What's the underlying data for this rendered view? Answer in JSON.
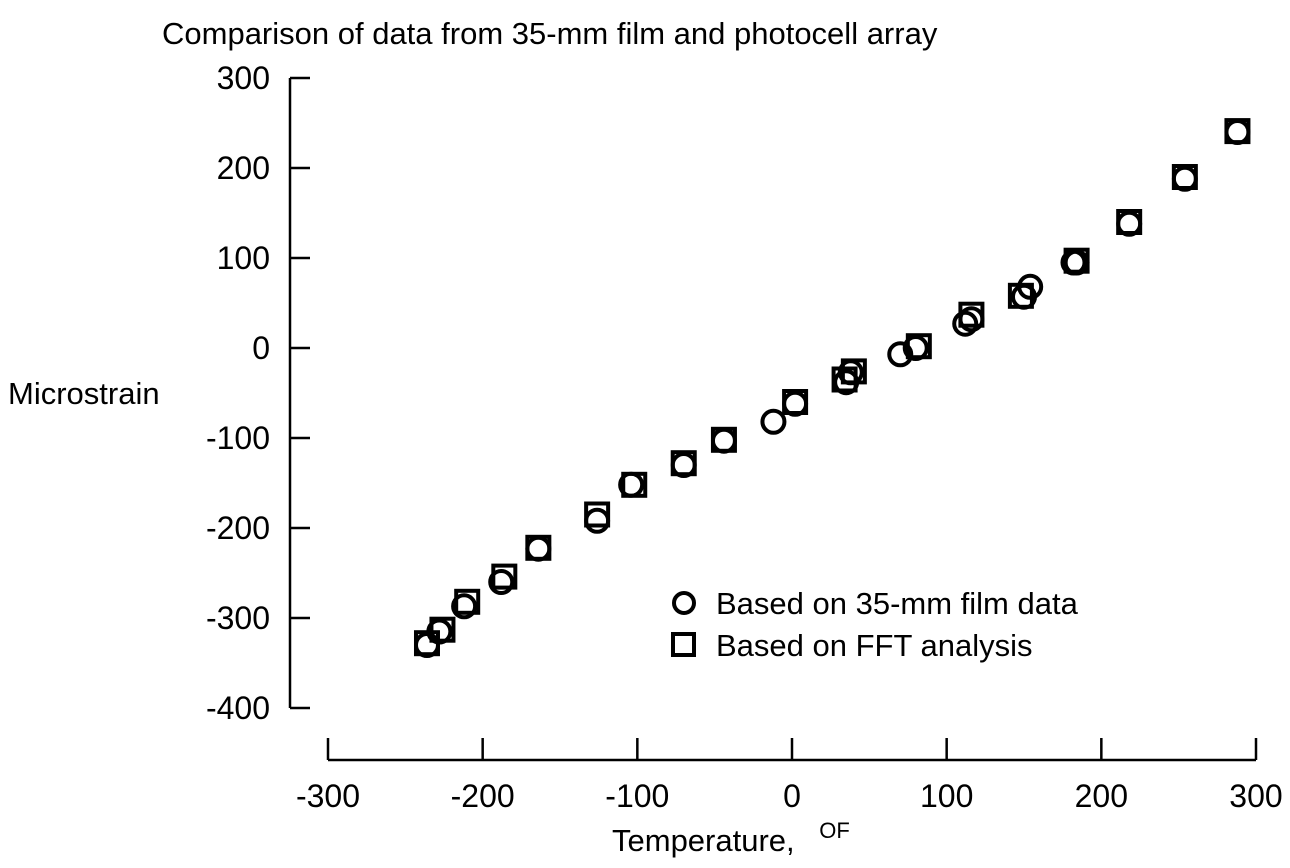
{
  "chart_data": {
    "type": "scatter",
    "title": "Comparison of data from 35-mm film and photocell array",
    "xlabel": "Temperature,",
    "xlabel_unit": "OF",
    "ylabel": "Microstrain",
    "xlim": [
      -300,
      300
    ],
    "ylim": [
      -400,
      300
    ],
    "x_ticks": [
      -300,
      -200,
      -100,
      0,
      100,
      200,
      300
    ],
    "y_ticks": [
      300,
      200,
      100,
      0,
      -100,
      -200,
      -300,
      -400
    ],
    "x_tick_labels": [
      "-300",
      "-200",
      "-100",
      "0",
      "100",
      "200",
      "300"
    ],
    "y_tick_labels": [
      "300",
      "200",
      "100",
      "0",
      "-100",
      "-200",
      "-300",
      "-400"
    ],
    "grid": false,
    "legend_position": "lower-right",
    "series": [
      {
        "name": "Based on 35-mm film data",
        "marker": "circle",
        "x": [
          -236,
          -228,
          -212,
          -188,
          -164,
          -126,
          -104,
          -70,
          -44,
          -12,
          2,
          35,
          38,
          70,
          80,
          112,
          116,
          150,
          154,
          182,
          184,
          218,
          254,
          288
        ],
        "y": [
          -330,
          -315,
          -287,
          -260,
          -223,
          -192,
          -152,
          -130,
          -103,
          -82,
          -62,
          -38,
          -27,
          -7,
          0,
          27,
          32,
          57,
          68,
          95,
          95,
          138,
          188,
          240
        ]
      },
      {
        "name": "Based on FFT analysis",
        "marker": "square",
        "x": [
          -236,
          -226,
          -210,
          -186,
          -164,
          -126,
          -102,
          -70,
          -44,
          2,
          34,
          40,
          82,
          116,
          148,
          184,
          218,
          254,
          288
        ],
        "y": [
          -328,
          -313,
          -282,
          -254,
          -222,
          -185,
          -152,
          -128,
          -102,
          -60,
          -35,
          -26,
          2,
          37,
          58,
          97,
          140,
          190,
          241
        ]
      }
    ]
  }
}
